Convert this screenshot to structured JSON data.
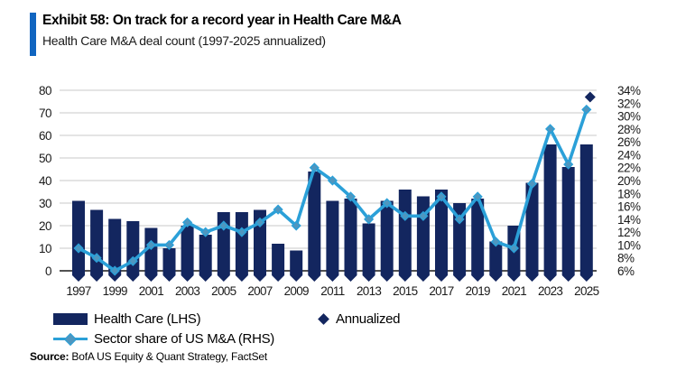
{
  "header": {
    "title": "Exhibit 58: On track for a record year in Health Care M&A",
    "subtitle": "Health Care M&A deal count (1997-2025 annualized)"
  },
  "legend": {
    "bars_label": "Health Care (LHS)",
    "annualized_label": "Annualized",
    "line_label": "Sector share of US M&A (RHS)"
  },
  "source": {
    "label": "Source:",
    "text": "BofA US Equity & Quant Strategy, FactSet"
  },
  "colors": {
    "navy": "#13265f",
    "line_blue": "#2ba0d8",
    "marker_fill": "#4f96bf",
    "accent_blue": "#1065c0",
    "grid": "#c9c9c9",
    "axis": "#1a1a1a"
  },
  "chart_data": {
    "type": "combo",
    "title": "Health Care M&A deal count (1997-2025 annualized)",
    "x": [
      1997,
      1998,
      1999,
      2000,
      2001,
      2002,
      2003,
      2004,
      2005,
      2006,
      2007,
      2008,
      2009,
      2010,
      2011,
      2012,
      2013,
      2014,
      2015,
      2016,
      2017,
      2018,
      2019,
      2020,
      2021,
      2022,
      2023,
      2024,
      2025
    ],
    "x_tick_labels": [
      "1997",
      "1999",
      "2001",
      "2003",
      "2005",
      "2007",
      "2009",
      "2011",
      "2013",
      "2015",
      "2017",
      "2019",
      "2021",
      "2023",
      "2025"
    ],
    "series": [
      {
        "name": "Health Care (LHS)",
        "type": "bar",
        "axis": "left",
        "values": [
          31,
          27,
          23,
          22,
          19,
          10,
          20,
          16,
          26,
          26,
          27,
          12,
          9,
          44,
          31,
          32,
          21,
          31,
          36,
          33,
          36,
          30,
          32,
          13,
          20,
          39,
          56,
          46,
          56
        ]
      },
      {
        "name": "Sector share of US M&A (RHS)",
        "type": "line",
        "axis": "right",
        "values": [
          9.5,
          8,
          6,
          7.5,
          10,
          10,
          13.5,
          12,
          13,
          12,
          13.5,
          15.5,
          13,
          22,
          20,
          17.5,
          14,
          16.5,
          14.5,
          14.5,
          17.5,
          14,
          17.5,
          10.5,
          9.5,
          19.5,
          28,
          22.5,
          31
        ]
      },
      {
        "name": "Annualized",
        "type": "point",
        "axis": "left",
        "x": 2025,
        "value": 77
      }
    ],
    "y_left": {
      "min": 0,
      "max": 80,
      "ticks": [
        0,
        10,
        20,
        30,
        40,
        50,
        60,
        70,
        80
      ]
    },
    "y_right": {
      "min": 6,
      "max": 34,
      "tick_labels": [
        "6%",
        "8%",
        "10%",
        "12%",
        "14%",
        "16%",
        "18%",
        "20%",
        "22%",
        "24%",
        "26%",
        "28%",
        "30%",
        "32%",
        "34%"
      ]
    },
    "grid": "horizontal",
    "legend_position": "bottom"
  }
}
